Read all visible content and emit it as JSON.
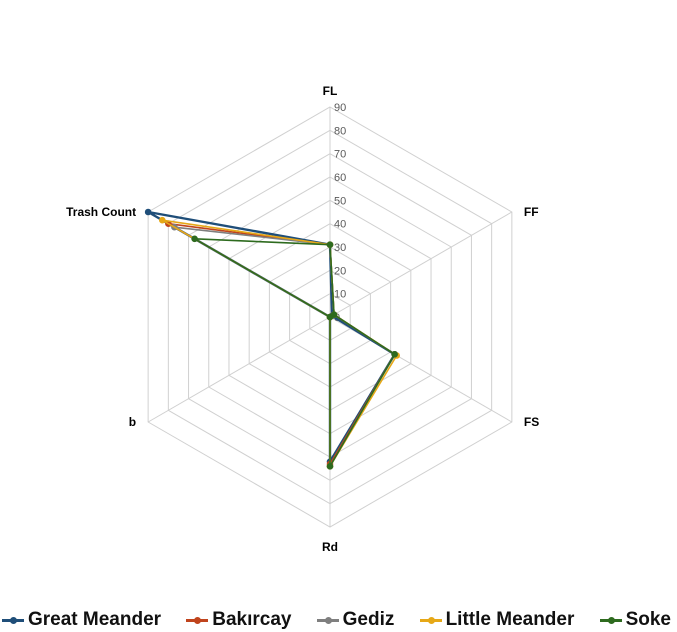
{
  "chart_data": {
    "type": "radar",
    "axes": [
      "FL",
      "FF",
      "FS",
      "Rd",
      "b",
      "Trash Count"
    ],
    "range": [
      0,
      90
    ],
    "ticks": [
      0,
      10,
      20,
      30,
      40,
      50,
      60,
      70,
      80,
      90
    ],
    "grid": true,
    "legend_position": "bottom",
    "series": [
      {
        "name": "Great Meander",
        "color": "#1f4e79",
        "values": [
          31,
          1,
          32,
          62,
          0,
          90
        ]
      },
      {
        "name": "Bakırcay",
        "color": "#c0441d",
        "values": [
          31,
          2,
          32,
          63,
          0,
          80
        ]
      },
      {
        "name": "Gediz",
        "color": "#7f7f7f",
        "values": [
          31,
          2,
          32,
          64,
          0,
          77
        ]
      },
      {
        "name": "Little Meander",
        "color": "#e6a817",
        "values": [
          31,
          2,
          33,
          64,
          0,
          83
        ]
      },
      {
        "name": "Soke",
        "color": "#2e6b1f",
        "values": [
          31,
          2,
          32,
          64,
          0,
          67
        ]
      }
    ]
  }
}
